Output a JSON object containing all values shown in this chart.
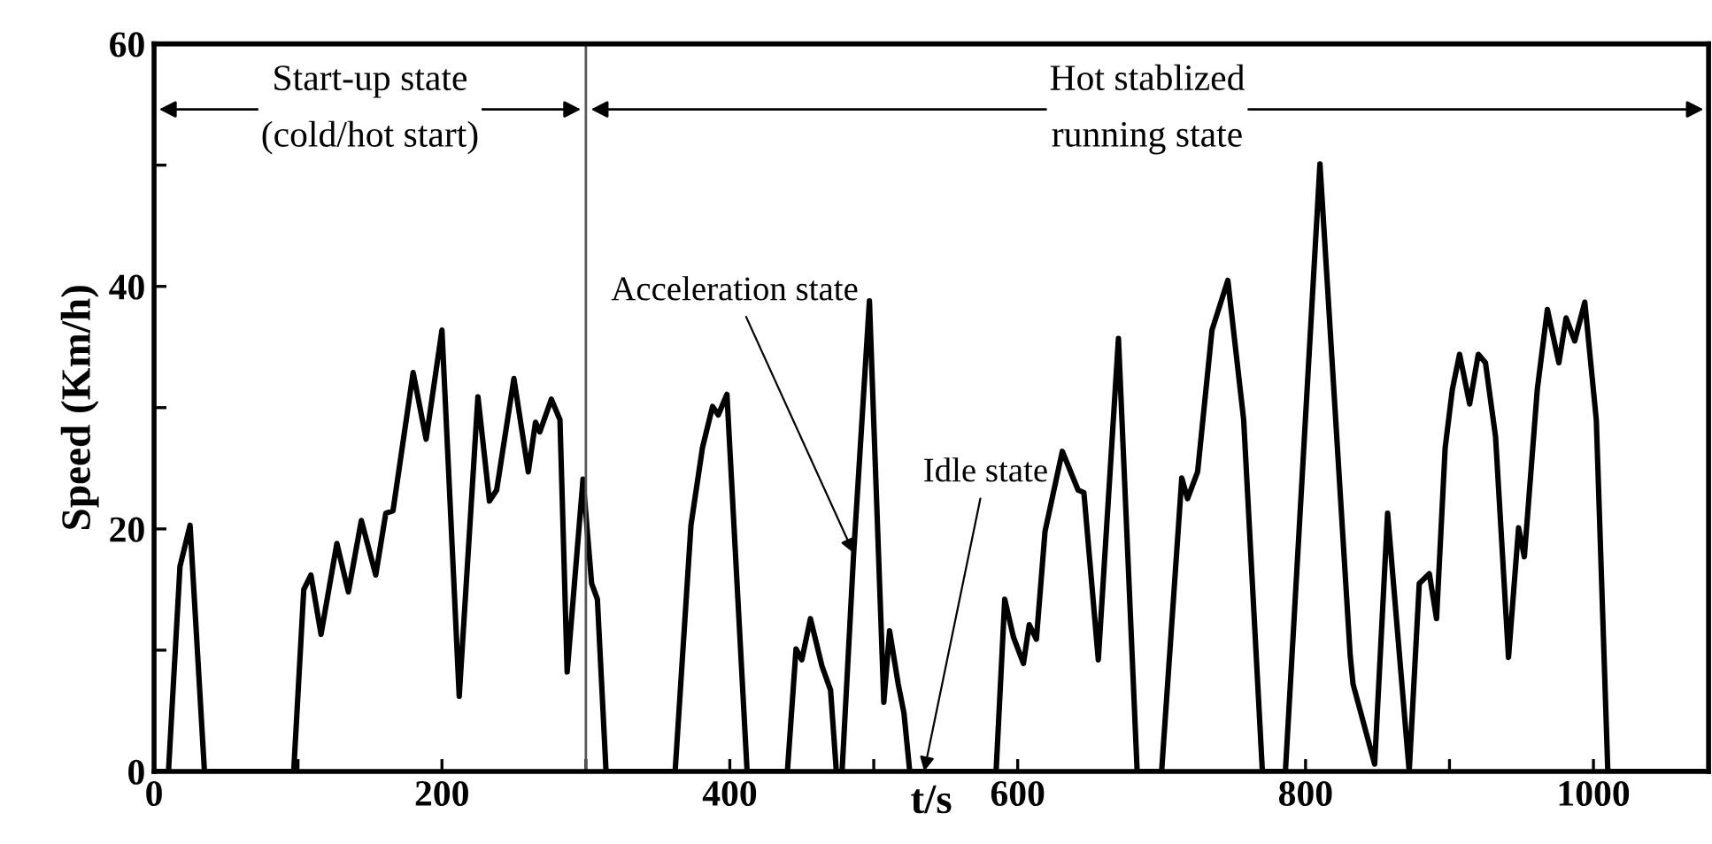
{
  "chart_data": {
    "type": "line",
    "xlabel": "t/s",
    "ylabel": "Speed (Km/h)",
    "x": [
      0,
      10,
      18,
      25,
      35,
      97,
      104,
      109,
      116,
      127,
      135,
      144,
      154,
      161,
      166,
      180,
      189,
      200,
      212,
      225,
      233,
      238,
      250,
      260,
      265,
      268,
      276,
      282,
      287,
      298,
      304,
      308,
      314,
      362,
      373,
      381,
      388,
      392,
      398,
      412,
      440,
      446,
      450,
      456,
      464,
      470,
      474,
      478,
      486,
      497,
      507,
      511,
      517,
      521,
      525,
      585,
      591,
      597,
      604,
      608,
      613,
      619,
      631,
      642,
      646,
      656,
      670,
      683,
      700,
      714,
      718,
      725,
      735,
      746,
      757,
      770,
      786,
      810,
      831,
      833,
      848,
      857,
      872,
      879,
      886,
      891,
      897,
      902,
      907,
      914,
      920,
      925,
      932,
      941,
      948,
      952,
      961,
      968,
      976,
      981,
      987,
      994,
      1002,
      1010,
      1080
    ],
    "series": [
      {
        "color": "#000000",
        "values": [
          0,
          0,
          16.9,
          20.3,
          0,
          0,
          15,
          16.2,
          11.3,
          18.8,
          14.8,
          20.7,
          16.2,
          21.3,
          21.5,
          32.9,
          27.4,
          36.4,
          6.2,
          30.9,
          22.3,
          23.2,
          32.4,
          24.7,
          28.8,
          28,
          30.7,
          29,
          8.2,
          24.1,
          15.5,
          14.2,
          0,
          0,
          20.3,
          26.7,
          30.1,
          29.4,
          31.1,
          0,
          0,
          10.1,
          9.2,
          12.6,
          8.7,
          6.7,
          0,
          0,
          17.9,
          38.8,
          5.7,
          11.6,
          7.2,
          4.8,
          0,
          0,
          14.2,
          11.1,
          8.9,
          12.1,
          10.9,
          19.8,
          26.4,
          23.2,
          23,
          9.2,
          35.7,
          0,
          0,
          24.2,
          22.5,
          24.7,
          36.4,
          40.5,
          29,
          0,
          0,
          50.1,
          9.6,
          7.2,
          0.6,
          21.3,
          0,
          15.5,
          16.3,
          12.6,
          26.7,
          31.5,
          34.4,
          30.3,
          34.4,
          33.7,
          27.6,
          9.4,
          20.1,
          17.7,
          31.5,
          38.1,
          33.7,
          37.4,
          35.5,
          38.7,
          29,
          0,
          0
        ]
      }
    ],
    "xlim": [
      0,
      1080
    ],
    "xticks": [
      0,
      {
        "value": 100,
        "label": null
      },
      200,
      {
        "value": 300,
        "label": null
      },
      400,
      {
        "value": 500,
        "label": null
      },
      600,
      {
        "value": 700,
        "label": null
      },
      800,
      {
        "value": 900,
        "label": null
      },
      1000
    ],
    "ylim": [
      0,
      60
    ],
    "yticks": [
      0,
      {
        "value": 10,
        "label": null
      },
      20,
      {
        "value": 30,
        "label": null
      },
      40,
      {
        "value": 50,
        "label": null
      },
      60
    ],
    "ref_lines": [
      {
        "axis": "x",
        "value": 300,
        "color": "#555555"
      }
    ],
    "annotations": [
      "Start-up state\n(cold/hot start)",
      "Hot stablized\nrunning state",
      {
        "text": "Acceleration state",
        "x": 486,
        "y": 18
      },
      {
        "text": "Idle state",
        "x": 535,
        "y": 0
      }
    ],
    "line_style": "solid",
    "marker": "none",
    "grid": false
  }
}
